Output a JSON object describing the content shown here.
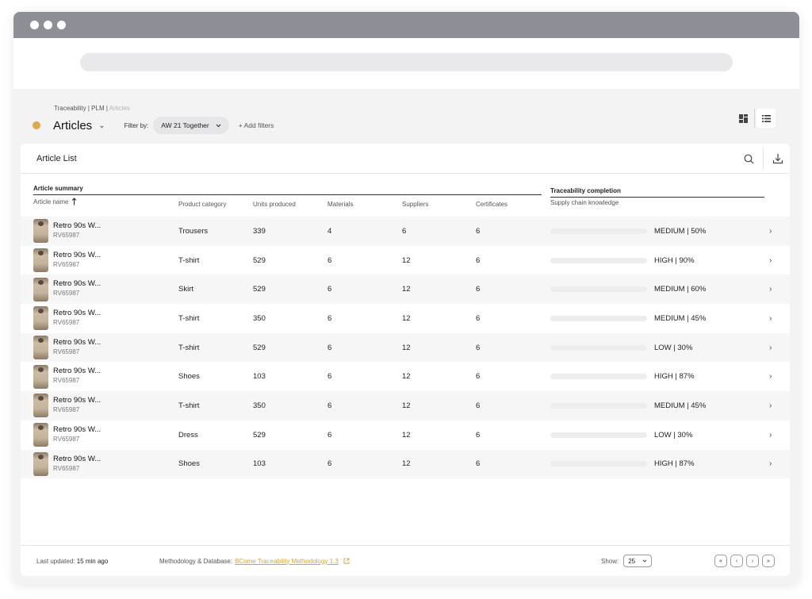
{
  "window": {
    "url": ""
  },
  "breadcrumb": {
    "part1": "Traceability",
    "sep1": "|",
    "part2": "PLM",
    "sep2": "|",
    "current": "Articles"
  },
  "page": {
    "title": "Articles",
    "filter_label": "Filter by:",
    "filter_value": "AW 21 Together",
    "add_filters": "+ Add filters"
  },
  "card": {
    "title": "Article List",
    "group_summary": "Article summary",
    "group_traceability": "Traceability completion",
    "columns": {
      "article_name": "Article name",
      "product_category": "Product category",
      "units_produced": "Units produced",
      "materials": "Materials",
      "suppliers": "Suppliers",
      "certificates": "Certificates",
      "supply_chain": "Supply chain knowledge"
    }
  },
  "colors": {
    "high": "#183f97",
    "high_alt": "#2e55b3",
    "medium_50": "#6d9ce8",
    "medium_60": "#4a7ad4",
    "medium_45": "#c6d6f4",
    "low": "#dde7f8",
    "accent": "#dda845"
  },
  "rows": [
    {
      "name": "Retro 90s W...",
      "code": "RV65987",
      "category": "Trousers",
      "units": "339",
      "materials": "4",
      "suppliers": "6",
      "certificates": "6",
      "level": "MEDIUM | 50%",
      "progress": 0.5,
      "color": "#6d9ce8"
    },
    {
      "name": "Retro 90s W...",
      "code": "RV65987",
      "category": "T-shirt",
      "units": "529",
      "materials": "6",
      "suppliers": "12",
      "certificates": "6",
      "level": "HIGH | 90%",
      "progress": 0.9,
      "color": "#183f97"
    },
    {
      "name": "Retro 90s W...",
      "code": "RV65987",
      "category": "Skirt",
      "units": "529",
      "materials": "6",
      "suppliers": "12",
      "certificates": "6",
      "level": "MEDIUM | 60%",
      "progress": 0.6,
      "color": "#4a7ad4"
    },
    {
      "name": "Retro 90s W...",
      "code": "RV65987",
      "category": "T-shirt",
      "units": "350",
      "materials": "6",
      "suppliers": "12",
      "certificates": "6",
      "level": "MEDIUM | 45%",
      "progress": 0.45,
      "color": "#c6d6f4"
    },
    {
      "name": "Retro 90s W...",
      "code": "RV65987",
      "category": "T-shirt",
      "units": "529",
      "materials": "6",
      "suppliers": "12",
      "certificates": "6",
      "level": "LOW | 30%",
      "progress": 0.3,
      "color": "#dde7f8"
    },
    {
      "name": "Retro 90s W...",
      "code": "RV65987",
      "category": "Shoes",
      "units": "103",
      "materials": "6",
      "suppliers": "12",
      "certificates": "6",
      "level": "HIGH | 87%",
      "progress": 0.87,
      "color": "#2e55b3"
    },
    {
      "name": "Retro 90s W...",
      "code": "RV65987",
      "category": "T-shirt",
      "units": "350",
      "materials": "6",
      "suppliers": "12",
      "certificates": "6",
      "level": "MEDIUM | 45%",
      "progress": 0.45,
      "color": "#c6d6f4"
    },
    {
      "name": "Retro 90s W...",
      "code": "RV65987",
      "category": "Dress",
      "units": "529",
      "materials": "6",
      "suppliers": "12",
      "certificates": "6",
      "level": "LOW | 30%",
      "progress": 0.3,
      "color": "#dde7f8"
    },
    {
      "name": "Retro 90s W...",
      "code": "RV65987",
      "category": "Shoes",
      "units": "103",
      "materials": "6",
      "suppliers": "12",
      "certificates": "6",
      "level": "HIGH | 87%",
      "progress": 0.87,
      "color": "#2e55b3"
    }
  ],
  "footer": {
    "last_updated_label": "Last updated:",
    "last_updated_value": "15 min ago",
    "methodology_label": "Methodology & Database:",
    "methodology_link": "BCome Traceability Methodology 1.3",
    "show_label": "Show:",
    "show_value": "25"
  },
  "icons": {
    "sort": "arrow-up-icon",
    "search": "search-icon",
    "download": "download-icon",
    "grid_view": "grid-view-icon",
    "list_view": "list-view-icon",
    "chevron": "chevron-right-icon",
    "external": "external-link-icon"
  }
}
